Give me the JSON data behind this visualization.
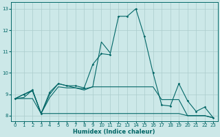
{
  "xlabel": "Humidex (Indice chaleur)",
  "background_color": "#cce8e8",
  "grid_color": "#aacccc",
  "line_color": "#006666",
  "x": [
    0,
    1,
    2,
    3,
    4,
    5,
    6,
    7,
    8,
    9,
    10,
    11,
    12,
    13,
    14,
    15,
    16,
    17,
    18,
    19,
    20,
    21,
    22,
    23
  ],
  "line1": [
    8.8,
    9.0,
    9.2,
    8.1,
    9.1,
    9.5,
    9.4,
    9.4,
    9.3,
    10.4,
    10.9,
    10.85,
    12.65,
    12.65,
    13.0,
    11.7,
    10.0,
    8.5,
    8.45,
    9.5,
    8.7,
    8.2,
    8.4,
    7.9
  ],
  "line2_x": [
    0,
    1,
    2,
    3,
    4,
    5,
    6,
    7,
    8,
    9,
    10,
    11
  ],
  "line2_y": [
    8.8,
    9.0,
    9.15,
    8.1,
    9.0,
    9.5,
    9.4,
    9.3,
    9.25,
    9.35,
    11.45,
    10.95
  ],
  "line3": [
    8.8,
    8.85,
    9.2,
    8.1,
    8.85,
    9.35,
    9.3,
    9.3,
    9.2,
    9.35,
    9.35,
    9.35,
    9.35,
    9.35,
    9.35,
    9.35,
    9.35,
    8.75,
    8.75,
    8.75,
    8.0,
    8.0,
    8.0,
    7.9
  ],
  "line4": [
    8.8,
    8.8,
    8.8,
    8.1,
    8.1,
    8.1,
    8.1,
    8.1,
    8.1,
    8.1,
    8.1,
    8.1,
    8.1,
    8.1,
    8.1,
    8.1,
    8.1,
    8.1,
    8.1,
    8.1,
    8.0,
    8.0,
    8.0,
    7.9
  ],
  "ylim": [
    7.75,
    13.3
  ],
  "xlim": [
    -0.5,
    23.5
  ],
  "yticks": [
    8,
    9,
    10,
    11,
    12,
    13
  ],
  "xticks": [
    0,
    1,
    2,
    3,
    4,
    5,
    6,
    7,
    8,
    9,
    10,
    11,
    12,
    13,
    14,
    15,
    16,
    17,
    18,
    19,
    20,
    21,
    22,
    23
  ],
  "xlabel_fontsize": 6.0,
  "tick_fontsize": 5.0,
  "linewidth": 0.8,
  "markersize": 1.8
}
